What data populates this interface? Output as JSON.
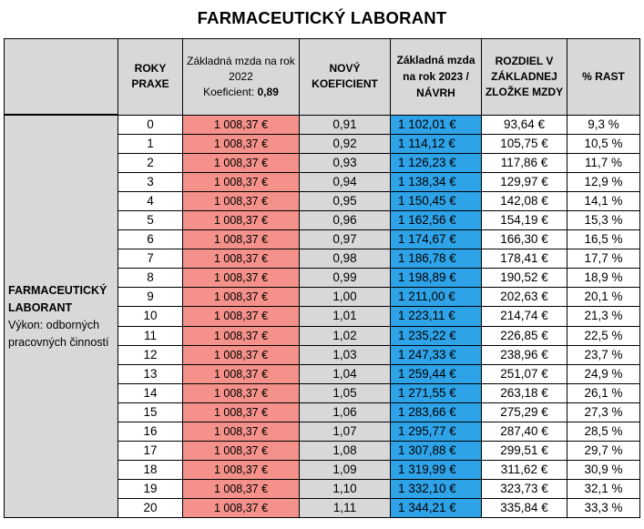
{
  "title": "FARMACEUTICKÝ LABORANT",
  "colors": {
    "header_bg": "#d8d8d8",
    "base2022_bg": "#f4918a",
    "coef_bg": "#d8d8d8",
    "base2023_bg": "#2fa3e8"
  },
  "headers": {
    "years": "ROKY PRAXE",
    "base2022_line1": "Základná mzda na rok 2022",
    "base2022_coef_label": "Koeficient:",
    "base2022_coef_value": "0,89",
    "new_coef": "NOVÝ KOEFICIENT",
    "base2023": "Základná mzda na rok 2023 / NÁVRH",
    "difference": "ROZDIEL V ZÁKLADNEJ ZLOŽKE MZDY",
    "growth": "% RAST"
  },
  "group": {
    "title": "FARMACEUTICKÝ LABORANT",
    "subtitle": "Výkon: odborných pracovných činností"
  },
  "rows": [
    {
      "years": "0",
      "base2022": "1 008,37 €",
      "coef": "0,91",
      "base2023": "1 102,01 €",
      "diff": "93,64 €",
      "growth": "9,3 %"
    },
    {
      "years": "1",
      "base2022": "1 008,37 €",
      "coef": "0,92",
      "base2023": "1 114,12 €",
      "diff": "105,75 €",
      "growth": "10,5 %"
    },
    {
      "years": "2",
      "base2022": "1 008,37 €",
      "coef": "0,93",
      "base2023": "1 126,23 €",
      "diff": "117,86 €",
      "growth": "11,7 %"
    },
    {
      "years": "3",
      "base2022": "1 008,37 €",
      "coef": "0,94",
      "base2023": "1 138,34 €",
      "diff": "129,97 €",
      "growth": "12,9 %"
    },
    {
      "years": "4",
      "base2022": "1 008,37 €",
      "coef": "0,95",
      "base2023": "1 150,45 €",
      "diff": "142,08 €",
      "growth": "14,1 %"
    },
    {
      "years": "5",
      "base2022": "1 008,37 €",
      "coef": "0,96",
      "base2023": "1 162,56 €",
      "diff": "154,19 €",
      "growth": "15,3 %"
    },
    {
      "years": "6",
      "base2022": "1 008,37 €",
      "coef": "0,97",
      "base2023": "1 174,67 €",
      "diff": "166,30 €",
      "growth": "16,5 %"
    },
    {
      "years": "7",
      "base2022": "1 008,37 €",
      "coef": "0,98",
      "base2023": "1 186,78 €",
      "diff": "178,41 €",
      "growth": "17,7 %"
    },
    {
      "years": "8",
      "base2022": "1 008,37 €",
      "coef": "0,99",
      "base2023": "1 198,89 €",
      "diff": "190,52 €",
      "growth": "18,9 %"
    },
    {
      "years": "9",
      "base2022": "1 008,37 €",
      "coef": "1,00",
      "base2023": "1 211,00 €",
      "diff": "202,63 €",
      "growth": "20,1 %"
    },
    {
      "years": "10",
      "base2022": "1 008,37 €",
      "coef": "1,01",
      "base2023": "1 223,11 €",
      "diff": "214,74 €",
      "growth": "21,3 %"
    },
    {
      "years": "11",
      "base2022": "1 008,37 €",
      "coef": "1,02",
      "base2023": "1 235,22 €",
      "diff": "226,85 €",
      "growth": "22,5 %"
    },
    {
      "years": "12",
      "base2022": "1 008,37 €",
      "coef": "1,03",
      "base2023": "1 247,33 €",
      "diff": "238,96 €",
      "growth": "23,7 %"
    },
    {
      "years": "13",
      "base2022": "1 008,37 €",
      "coef": "1,04",
      "base2023": "1 259,44 €",
      "diff": "251,07 €",
      "growth": "24,9 %"
    },
    {
      "years": "14",
      "base2022": "1 008,37 €",
      "coef": "1,05",
      "base2023": "1 271,55 €",
      "diff": "263,18 €",
      "growth": "26,1 %"
    },
    {
      "years": "15",
      "base2022": "1 008,37 €",
      "coef": "1,06",
      "base2023": "1 283,66 €",
      "diff": "275,29 €",
      "growth": "27,3 %"
    },
    {
      "years": "16",
      "base2022": "1 008,37 €",
      "coef": "1,07",
      "base2023": "1 295,77 €",
      "diff": "287,40 €",
      "growth": "28,5 %"
    },
    {
      "years": "17",
      "base2022": "1 008,37 €",
      "coef": "1,08",
      "base2023": "1 307,88 €",
      "diff": "299,51 €",
      "growth": "29,7 %"
    },
    {
      "years": "18",
      "base2022": "1 008,37 €",
      "coef": "1,09",
      "base2023": "1 319,99 €",
      "diff": "311,62 €",
      "growth": "30,9 %"
    },
    {
      "years": "19",
      "base2022": "1 008,37 €",
      "coef": "1,10",
      "base2023": "1 332,10 €",
      "diff": "323,73 €",
      "growth": "32,1 %"
    },
    {
      "years": "20",
      "base2022": "1 008,37 €",
      "coef": "1,11",
      "base2023": "1 344,21 €",
      "diff": "335,84 €",
      "growth": "33,3 %"
    }
  ]
}
